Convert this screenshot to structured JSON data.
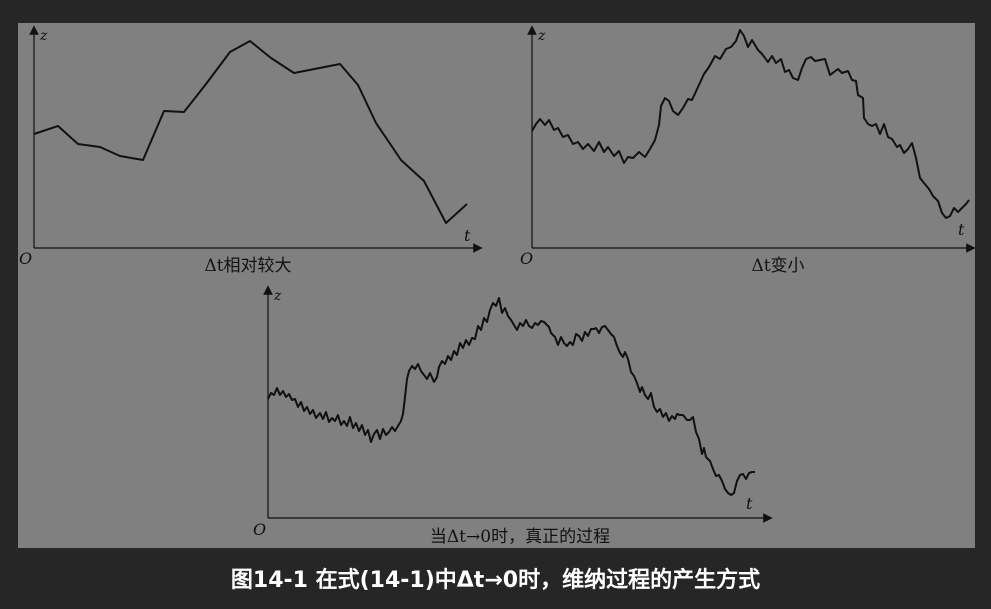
{
  "caption": "图14-1 在式(14-1)中Δt→0时，维纳过程的产生方式",
  "panels": [
    {
      "id": "p1",
      "title": "Δt相对较大",
      "ylabel": "z",
      "xlabel": "t",
      "origin": "O"
    },
    {
      "id": "p2",
      "title": "Δt变小",
      "ylabel": "z",
      "xlabel": "t",
      "origin": "O"
    },
    {
      "id": "p3",
      "title": "当Δt→0时，真正的过程",
      "ylabel": "z",
      "xlabel": "t",
      "origin": "O"
    }
  ],
  "colors": {
    "background": "#262626",
    "figure": "#808080",
    "ink": "#111111",
    "caption": "#ffffff"
  }
}
